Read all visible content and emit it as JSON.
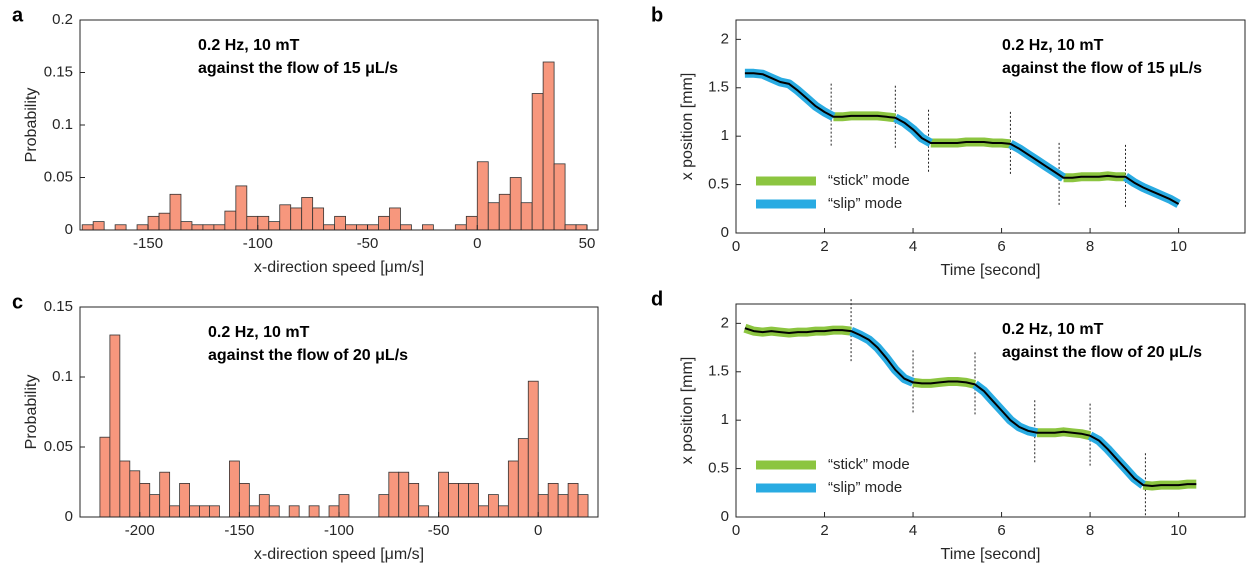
{
  "chart_data": [
    {
      "type": "histogram",
      "label": "a",
      "annotation": [
        "0.2 Hz, 10 mT",
        "against the flow of 15 μL/s"
      ],
      "xlabel": "x-direction speed [μm/s]",
      "ylabel": "Probability",
      "color": "#f7977d",
      "bins": [
        -180,
        -175,
        -170,
        -165,
        -160,
        -155,
        -150,
        -145,
        -140,
        -135,
        -130,
        -125,
        -120,
        -115,
        -110,
        -105,
        -100,
        -95,
        -90,
        -85,
        -80,
        -75,
        -70,
        -65,
        -60,
        -55,
        -50,
        -45,
        -40,
        -35,
        -30,
        -25,
        -20,
        -15,
        -10,
        -5,
        0,
        5,
        10,
        15,
        20,
        25,
        30,
        35,
        40,
        45,
        50
      ],
      "values": [
        0.005,
        0.008,
        0,
        0.005,
        0,
        0.005,
        0.013,
        0.016,
        0.034,
        0.008,
        0.005,
        0.005,
        0.005,
        0.018,
        0.042,
        0.013,
        0.013,
        0.008,
        0.024,
        0.021,
        0.031,
        0.021,
        0.005,
        0.013,
        0.005,
        0.005,
        0.005,
        0.013,
        0.021,
        0.005,
        0,
        0.005,
        0,
        0,
        0.005,
        0.013,
        0.065,
        0.026,
        0.034,
        0.05,
        0.026,
        0.13,
        0.16,
        0.063,
        0.005,
        0.005
      ],
      "xlim": [
        -181,
        55
      ],
      "ylim": [
        0,
        0.2
      ],
      "xticks": [
        -150,
        -100,
        -50,
        0,
        50
      ],
      "yticks": [
        0,
        0.05,
        0.1,
        0.15,
        0.2
      ]
    },
    {
      "type": "line",
      "label": "b",
      "annotation": [
        "0.2 Hz, 10 mT",
        "against the flow of 15 μL/s"
      ],
      "xlabel": "Time [second]",
      "ylabel": "x position [mm]",
      "legend": "lower left",
      "x": [
        0.2,
        0.4,
        0.6,
        0.8,
        1.0,
        1.2,
        1.4,
        1.6,
        1.8,
        2.0,
        2.2,
        2.4,
        2.6,
        2.8,
        3.0,
        3.2,
        3.4,
        3.6,
        3.8,
        4.0,
        4.2,
        4.4,
        4.6,
        4.8,
        5.0,
        5.2,
        5.4,
        5.6,
        5.8,
        6.0,
        6.2,
        6.4,
        6.6,
        6.8,
        7.0,
        7.2,
        7.4,
        7.6,
        7.8,
        8.0,
        8.2,
        8.4,
        8.6,
        8.8,
        9.0,
        9.2,
        9.4,
        9.6,
        9.8,
        10.0
      ],
      "series": [
        {
          "name": "“stick” mode",
          "color": "#8cc540",
          "values": [
            null,
            null,
            null,
            null,
            null,
            null,
            null,
            null,
            null,
            null,
            1.2,
            1.2,
            1.21,
            1.21,
            1.21,
            1.21,
            1.2,
            1.19,
            null,
            null,
            null,
            0.93,
            0.93,
            0.93,
            0.93,
            0.94,
            0.94,
            0.94,
            0.93,
            0.93,
            0.92,
            null,
            null,
            null,
            null,
            null,
            0.57,
            0.57,
            0.58,
            0.58,
            0.58,
            0.59,
            0.58,
            0.58,
            null,
            null,
            null,
            null,
            null,
            null
          ]
        },
        {
          "name": "“slip” mode",
          "color": "#29abe2",
          "values": [
            1.65,
            1.65,
            1.64,
            1.6,
            1.56,
            1.54,
            1.47,
            1.39,
            1.31,
            1.25,
            1.2,
            null,
            null,
            null,
            null,
            null,
            null,
            1.19,
            1.14,
            1.07,
            0.98,
            0.93,
            null,
            null,
            null,
            null,
            null,
            null,
            null,
            null,
            0.92,
            0.87,
            0.81,
            0.75,
            0.69,
            0.63,
            0.57,
            null,
            null,
            null,
            null,
            null,
            null,
            0.58,
            0.52,
            0.47,
            0.43,
            0.39,
            0.35,
            0.3
          ]
        },
        {
          "color": "#000000",
          "values": [
            1.65,
            1.65,
            1.64,
            1.6,
            1.56,
            1.54,
            1.47,
            1.39,
            1.31,
            1.25,
            1.2,
            1.2,
            1.21,
            1.21,
            1.21,
            1.21,
            1.2,
            1.19,
            1.14,
            1.07,
            0.98,
            0.93,
            0.93,
            0.93,
            0.93,
            0.94,
            0.94,
            0.94,
            0.93,
            0.93,
            0.92,
            0.87,
            0.81,
            0.75,
            0.69,
            0.63,
            0.57,
            0.57,
            0.58,
            0.58,
            0.58,
            0.59,
            0.58,
            0.58,
            0.52,
            0.47,
            0.43,
            0.39,
            0.35,
            0.3
          ]
        }
      ],
      "dividers": [
        2.15,
        3.6,
        4.35,
        6.2,
        7.3,
        8.8
      ],
      "xlim": [
        0,
        11.5
      ],
      "ylim": [
        0,
        2.2
      ],
      "xticks": [
        0,
        2,
        4,
        6,
        8,
        10
      ],
      "yticks": [
        0,
        0.5,
        1,
        1.5,
        2
      ]
    },
    {
      "type": "histogram",
      "label": "c",
      "annotation": [
        "0.2 Hz, 10 mT",
        "against the flow of 20 μL/s"
      ],
      "xlabel": "x-direction speed [μm/s]",
      "ylabel": "Probability",
      "color": "#f7977d",
      "bins": [
        -220,
        -215,
        -210,
        -205,
        -200,
        -195,
        -190,
        -185,
        -180,
        -175,
        -170,
        -165,
        -160,
        -155,
        -150,
        -145,
        -140,
        -135,
        -130,
        -125,
        -120,
        -115,
        -110,
        -105,
        -100,
        -95,
        -90,
        -85,
        -80,
        -75,
        -70,
        -65,
        -60,
        -55,
        -50,
        -45,
        -40,
        -35,
        -30,
        -25,
        -20,
        -15,
        -10,
        -5,
        0,
        5,
        10,
        15,
        20,
        25
      ],
      "values": [
        0.057,
        0.13,
        0.04,
        0.033,
        0.024,
        0.016,
        0.032,
        0.008,
        0.024,
        0.008,
        0.008,
        0.008,
        0,
        0.04,
        0.024,
        0.008,
        0.016,
        0.008,
        0,
        0.008,
        0,
        0.008,
        0,
        0.008,
        0.016,
        0,
        0,
        0,
        0.016,
        0.032,
        0.032,
        0.024,
        0.008,
        0,
        0.032,
        0.024,
        0.024,
        0.024,
        0.008,
        0.016,
        0.008,
        0.04,
        0.056,
        0.097,
        0.016,
        0.024,
        0.016,
        0.024,
        0.016
      ],
      "xlim": [
        -230,
        30
      ],
      "ylim": [
        0,
        0.15
      ],
      "xticks": [
        -200,
        -150,
        -100,
        -50,
        0
      ],
      "yticks": [
        0,
        0.05,
        0.1,
        0.15
      ]
    },
    {
      "type": "line",
      "label": "d",
      "annotation": [
        "0.2 Hz, 10 mT",
        "against the flow of 20 μL/s"
      ],
      "xlabel": "Time [second]",
      "ylabel": "x position [mm]",
      "legend": "lower left",
      "x": [
        0.2,
        0.4,
        0.6,
        0.8,
        1.0,
        1.2,
        1.4,
        1.6,
        1.8,
        2.0,
        2.2,
        2.4,
        2.6,
        2.8,
        3.0,
        3.2,
        3.4,
        3.6,
        3.8,
        4.0,
        4.2,
        4.4,
        4.6,
        4.8,
        5.0,
        5.2,
        5.4,
        5.6,
        5.8,
        6.0,
        6.2,
        6.4,
        6.6,
        6.8,
        7.0,
        7.2,
        7.4,
        7.6,
        7.8,
        8.0,
        8.2,
        8.4,
        8.6,
        8.8,
        9.0,
        9.2,
        9.4,
        9.6,
        9.8,
        10.0,
        10.2,
        10.4
      ],
      "series": [
        {
          "name": "“stick” mode",
          "color": "#8cc540",
          "values": [
            1.95,
            1.92,
            1.91,
            1.92,
            1.91,
            1.9,
            1.91,
            1.91,
            1.92,
            1.92,
            1.93,
            1.93,
            1.92,
            null,
            null,
            null,
            null,
            null,
            null,
            1.39,
            1.38,
            1.38,
            1.39,
            1.4,
            1.4,
            1.39,
            1.37,
            null,
            null,
            null,
            null,
            null,
            null,
            0.87,
            0.87,
            0.87,
            0.88,
            0.87,
            0.86,
            0.84,
            null,
            null,
            null,
            null,
            null,
            0.33,
            0.32,
            0.33,
            0.33,
            0.33,
            0.34,
            0.34
          ]
        },
        {
          "name": "“slip” mode",
          "color": "#29abe2",
          "values": [
            null,
            null,
            null,
            null,
            null,
            null,
            null,
            null,
            null,
            null,
            null,
            null,
            1.92,
            1.88,
            1.83,
            1.75,
            1.64,
            1.52,
            1.43,
            1.39,
            null,
            null,
            null,
            null,
            null,
            null,
            1.37,
            1.3,
            1.2,
            1.1,
            1.0,
            0.93,
            0.89,
            0.87,
            null,
            null,
            null,
            null,
            null,
            0.84,
            0.79,
            0.7,
            0.6,
            0.5,
            0.4,
            0.33,
            null,
            null,
            null,
            null,
            null,
            null
          ]
        },
        {
          "color": "#000000",
          "values": [
            1.95,
            1.92,
            1.91,
            1.92,
            1.91,
            1.9,
            1.91,
            1.91,
            1.92,
            1.92,
            1.93,
            1.93,
            1.92,
            1.88,
            1.83,
            1.75,
            1.64,
            1.52,
            1.43,
            1.39,
            1.38,
            1.38,
            1.39,
            1.4,
            1.4,
            1.39,
            1.37,
            1.3,
            1.2,
            1.1,
            1.0,
            0.93,
            0.89,
            0.87,
            0.87,
            0.87,
            0.88,
            0.87,
            0.86,
            0.84,
            0.79,
            0.7,
            0.6,
            0.5,
            0.4,
            0.33,
            0.32,
            0.33,
            0.33,
            0.33,
            0.34,
            0.34
          ]
        }
      ],
      "dividers": [
        2.6,
        4.0,
        5.4,
        6.75,
        8.0,
        9.25
      ],
      "xlim": [
        0,
        11.5
      ],
      "ylim": [
        0,
        2.2
      ],
      "xticks": [
        0,
        2,
        4,
        6,
        8,
        10
      ],
      "yticks": [
        0,
        0.5,
        1,
        1.5,
        2
      ]
    }
  ]
}
